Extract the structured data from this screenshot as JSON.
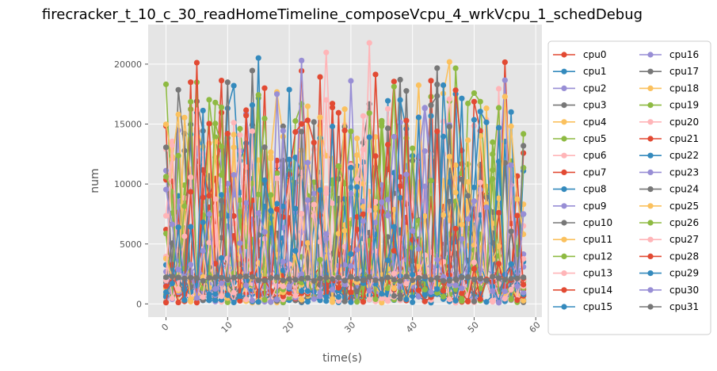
{
  "chart_data": {
    "type": "line",
    "title": "firecracker_t_10_c_30_readHomeTimeline_composeVcpu_4_wrkVcpu_1_schedDebug",
    "xlabel": "time(s)",
    "ylabel": "num",
    "xlim": [
      -2.9,
      61.0
    ],
    "ylim": [
      -1100,
      23300
    ],
    "xticks": [
      0,
      10,
      20,
      30,
      40,
      50,
      60
    ],
    "yticks": [
      0,
      5000,
      10000,
      15000,
      20000
    ],
    "grid": true,
    "legend": {
      "placement": "right-outside",
      "columns": 2
    },
    "x_start": 0,
    "x_end": 58,
    "series": [
      {
        "name": "cpu0",
        "color": "#E24A33",
        "mode": "burst",
        "base": 2600,
        "peak": 21700,
        "seed": 11
      },
      {
        "name": "cpu1",
        "color": "#348ABD",
        "mode": "burst",
        "base": 2400,
        "peak": 20300,
        "seed": 12
      },
      {
        "name": "cpu2",
        "color": "#988ED5",
        "mode": "burst",
        "base": 2400,
        "peak": 21800,
        "seed": 13
      },
      {
        "name": "cpu3",
        "color": "#777777",
        "mode": "burst",
        "base": 2500,
        "peak": 19800,
        "seed": 14
      },
      {
        "name": "cpu4",
        "color": "#FBC15E",
        "mode": "burst",
        "base": 2500,
        "peak": 22100,
        "seed": 15
      },
      {
        "name": "cpu5",
        "color": "#8EBA42",
        "mode": "burst",
        "base": 2500,
        "peak": 20100,
        "seed": 16
      },
      {
        "name": "cpu6",
        "color": "#FFB5B8",
        "mode": "burst",
        "base": 2500,
        "peak": 22200,
        "seed": 17
      },
      {
        "name": "cpu7",
        "color": "#E24A33",
        "mode": "burst",
        "base": 2400,
        "peak": 20400,
        "seed": 18
      },
      {
        "name": "cpu8",
        "color": "#348ABD",
        "mode": "low",
        "base": 120,
        "peak": 900,
        "seed": 19
      },
      {
        "name": "cpu9",
        "color": "#988ED5",
        "mode": "mid",
        "base": 2300,
        "peak": 3200,
        "seed": 20
      },
      {
        "name": "cpu10",
        "color": "#777777",
        "mode": "mid",
        "base": 1800,
        "peak": 2300,
        "seed": 21
      },
      {
        "name": "cpu11",
        "color": "#FBC15E",
        "mode": "burst",
        "base": 2400,
        "peak": 19300,
        "seed": 22
      },
      {
        "name": "cpu12",
        "color": "#8EBA42",
        "mode": "burst",
        "base": 2400,
        "peak": 19700,
        "seed": 23
      },
      {
        "name": "cpu13",
        "color": "#FFB5B8",
        "mode": "burst",
        "base": 2400,
        "peak": 17200,
        "seed": 24
      },
      {
        "name": "cpu14",
        "color": "#E24A33",
        "mode": "burst",
        "base": 2400,
        "peak": 19400,
        "seed": 25
      },
      {
        "name": "cpu15",
        "color": "#348ABD",
        "mode": "burst",
        "base": 2400,
        "peak": 21400,
        "seed": 26
      },
      {
        "name": "cpu16",
        "color": "#988ED5",
        "mode": "burst",
        "base": 2400,
        "peak": 20700,
        "seed": 27
      },
      {
        "name": "cpu17",
        "color": "#777777",
        "mode": "burst",
        "base": 2400,
        "peak": 18800,
        "seed": 28
      },
      {
        "name": "cpu18",
        "color": "#FBC15E",
        "mode": "burst",
        "base": 2400,
        "peak": 18100,
        "seed": 29
      },
      {
        "name": "cpu19",
        "color": "#8EBA42",
        "mode": "burst",
        "base": 2400,
        "peak": 18700,
        "seed": 30
      },
      {
        "name": "cpu20",
        "color": "#FFB5B8",
        "mode": "burst",
        "base": 2400,
        "peak": 16500,
        "seed": 31
      },
      {
        "name": "cpu21",
        "color": "#E24A33",
        "mode": "burst",
        "base": 2400,
        "peak": 19600,
        "seed": 32
      },
      {
        "name": "cpu22",
        "color": "#348ABD",
        "mode": "burst",
        "base": 2400,
        "peak": 18700,
        "seed": 33
      },
      {
        "name": "cpu23",
        "color": "#988ED5",
        "mode": "burst",
        "base": 2400,
        "peak": 16700,
        "seed": 34
      },
      {
        "name": "cpu24",
        "color": "#777777",
        "mode": "burst",
        "base": 2400,
        "peak": 18000,
        "seed": 35
      },
      {
        "name": "cpu25",
        "color": "#FBC15E",
        "mode": "burst",
        "base": 2400,
        "peak": 16400,
        "seed": 36
      },
      {
        "name": "cpu26",
        "color": "#8EBA42",
        "mode": "burst",
        "base": 2400,
        "peak": 18600,
        "seed": 37
      },
      {
        "name": "cpu27",
        "color": "#FFB5B8",
        "mode": "burst",
        "base": 2400,
        "peak": 14700,
        "seed": 38
      },
      {
        "name": "cpu28",
        "color": "#E24A33",
        "mode": "burst",
        "base": 2400,
        "peak": 16100,
        "seed": 39
      },
      {
        "name": "cpu29",
        "color": "#348ABD",
        "mode": "burst",
        "base": 2400,
        "peak": 16500,
        "seed": 40
      },
      {
        "name": "cpu30",
        "color": "#988ED5",
        "mode": "burst",
        "base": 2400,
        "peak": 15300,
        "seed": 41
      },
      {
        "name": "cpu31",
        "color": "#777777",
        "mode": "mid",
        "base": 1900,
        "peak": 2300,
        "seed": 42
      }
    ]
  }
}
